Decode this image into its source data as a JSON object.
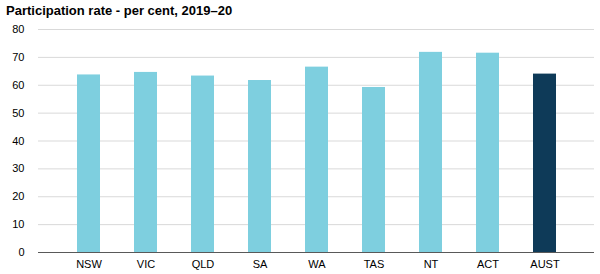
{
  "chart_data": {
    "type": "bar",
    "title": "Participation rate - per cent, 2019–20",
    "categories": [
      "NSW",
      "VIC",
      "QLD",
      "SA",
      "WA",
      "TAS",
      "NT",
      "ACT",
      "AUST"
    ],
    "values": [
      63.7,
      64.6,
      63.3,
      61.7,
      66.5,
      59.2,
      71.8,
      71.5,
      64.0
    ],
    "colors": [
      "#7ecfdf",
      "#7ecfdf",
      "#7ecfdf",
      "#7ecfdf",
      "#7ecfdf",
      "#7ecfdf",
      "#7ecfdf",
      "#7ecfdf",
      "#0e3a58"
    ],
    "ylim": [
      0,
      80
    ],
    "yticks": [
      0,
      10,
      20,
      30,
      40,
      50,
      60,
      70,
      80
    ],
    "grid": true
  }
}
